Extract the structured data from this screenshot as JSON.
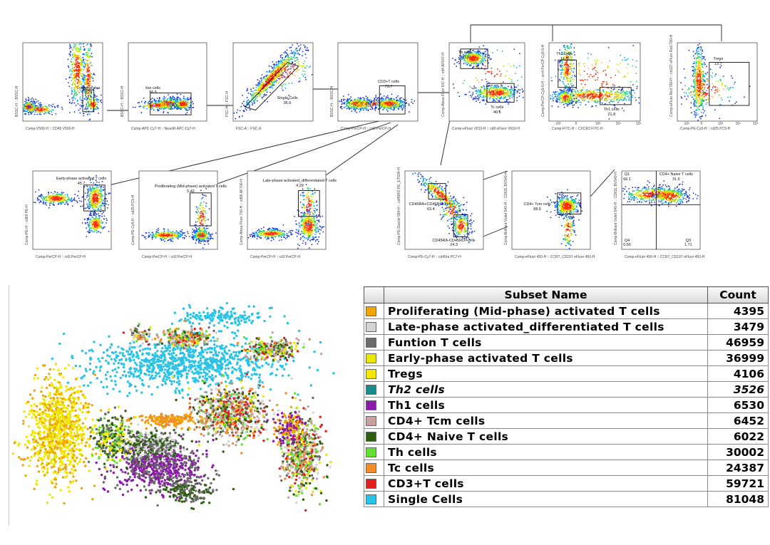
{
  "gating": {
    "panels": [
      {
        "id": "lymph",
        "x_label": "Comp-V500-H :: CD45 V500-H",
        "y_label": "BSSC-H :: BSSC-H",
        "gate_label": "Lymphocytes",
        "gate_value": "3.29"
      },
      {
        "id": "live",
        "x_label": "Comp-APC-Cy7-H :: NearIR APC-Cy7-H",
        "y_label": "BSSC-H :: BSSC-H",
        "gate_label": "live cells",
        "gate_value": "96.5"
      },
      {
        "id": "single",
        "x_label": "FSC-A :: FSC-A",
        "y_label": "FSC-H :: FSC-H",
        "gate_label": "Single Cells",
        "gate_value": "95.6"
      },
      {
        "id": "cd3",
        "x_label": "Comp-PerCP-H :: cd3 PerCP-H",
        "y_label": "BSSC-H :: BSSC-H",
        "gate_label": "CD3+T cells",
        "gate_value": "73.7"
      },
      {
        "id": "thtc",
        "x_label": "Comp-eFluor V610-H :: cd8 eFluor V610-H",
        "y_label": "Comp-Alexa Fluor 647-H :: cd4 AF647-H",
        "gate_label": "Th cells",
        "gate_value": "50.2",
        "gate_label2": "Tc cells",
        "gate_value2": "40.6"
      },
      {
        "id": "th12",
        "x_label": "Comp-FITC-H :: CXCR3 FITC-H",
        "y_label": "Comp-PerCP-Cy5-5-H :: ccr4 PerCP-Cy5-5-H",
        "gate_label": "Th2 cells",
        "gate_value": "11.8",
        "gate_label2": "Th1 cells",
        "gate_value2": "21.8",
        "ticks": [
          "-10³",
          "0",
          "10³",
          "10⁴",
          "10⁵"
        ]
      },
      {
        "id": "treg",
        "x_label": "Comp-PE-Cy5-H :: cd25 PC5-H",
        "y_label": "Comp-eFluor Red 780-H :: cd127 eFluor Red 780-H",
        "gate_label": "Tregs",
        "gate_value": "13.7",
        "ticks": [
          "-10³",
          "0",
          "10³",
          "10⁴",
          "10⁵"
        ]
      },
      {
        "id": "early",
        "x_label": "Comp-PerCP-H :: cd3 PerCP-H",
        "y_label": "Comp-PE-H :: cd69 PE-H",
        "gate_label": "Early-phase activated T cells",
        "gate_value": "45.7"
      },
      {
        "id": "prolif",
        "x_label": "Comp-PerCP-H :: cd3 PerCP-H",
        "y_label": "Comp-PE-Cy5-H :: cd25 PC5-H",
        "gate_label": "Proliferating (Mid-phase) activated T cells",
        "gate_value": "5.42"
      },
      {
        "id": "late",
        "x_label": "Comp-PerCP-H :: cd3 PerCP-H",
        "y_label": "Comp-Alexa Fluor 700-H :: cd95 AF700-H",
        "gate_label": "Late-phase activated_differentiated T cells",
        "gate_value": "4.29"
      },
      {
        "id": "cd45ra",
        "x_label": "Comp-PE-Cy7-H :: cd45ra PC7-H",
        "y_label": "Comp-PE-Dazzle 594-H :: cd45RO PE_ETS94-H",
        "gate_label": "CD45RA+CD45RO- cells",
        "gate_value": "63.4",
        "gate_label2": "CD45RA-CD45RO+cells",
        "gate_value2": "24.3"
      },
      {
        "id": "tcm",
        "x_label": "Comp-eFluor 450-H :: CCR7_CD197 eFluor 450-H",
        "y_label": "Comp-Brilliant Violet 540-H :: CD62L BV540-H",
        "gate_label": "CD4+ Tcm cells",
        "gate_value": "88.6"
      },
      {
        "id": "naive",
        "x_label": "Comp-eFluor 450-H :: CCR7_CD197 eFluor 450-H",
        "y_label": "Comp-Brilliant Violet 540-H :: CD62L BV540-H",
        "gate_label": "CD4+ Naive T cells",
        "gate_value": "31.6",
        "q1_label": "Q1",
        "q1_value": "66.1",
        "q3_label": "Q3",
        "q3_value": "1.71",
        "q4_label": "Q4",
        "q4_value": "0.56"
      }
    ]
  },
  "table": {
    "header_name": "Subset Name",
    "header_count": "Count",
    "rows": [
      {
        "name": "Proliferating (Mid-phase) activated T cells",
        "count": "4395",
        "color": "#f0a500",
        "italic": false
      },
      {
        "name": "Late-phase activated_differentiated T cells",
        "count": "3479",
        "color": "#d3d3d3",
        "italic": false
      },
      {
        "name": "Funtion T cells",
        "count": "46959",
        "color": "#6b6b6b",
        "italic": false
      },
      {
        "name": "Early-phase activated T cells",
        "count": "36999",
        "color": "#e8e800",
        "italic": false
      },
      {
        "name": "Tregs",
        "count": "4106",
        "color": "#f6e700",
        "italic": false
      },
      {
        "name": "Th2 cells",
        "count": "3526",
        "color": "#1a8a8a",
        "italic": true
      },
      {
        "name": "Th1 cells",
        "count": "6530",
        "color": "#8a1aa8",
        "italic": false
      },
      {
        "name": "CD4+ Tcm cells",
        "count": "6452",
        "color": "#caa0a0",
        "italic": false
      },
      {
        "name": "CD4+ Naive T cells",
        "count": "6022",
        "color": "#2e5e10",
        "italic": false
      },
      {
        "name": "Th cells",
        "count": "30002",
        "color": "#66dd33",
        "italic": false
      },
      {
        "name": "Tc cells",
        "count": "24387",
        "color": "#f28c28",
        "italic": false
      },
      {
        "name": "CD3+T cells",
        "count": "59721",
        "color": "#e02020",
        "italic": false
      },
      {
        "name": "Single Cells",
        "count": "81048",
        "color": "#29c3e6",
        "italic": false
      }
    ]
  },
  "chart_data": [
    {
      "type": "table",
      "columns": [
        "Subset Name",
        "Count"
      ],
      "rows": [
        [
          "Proliferating (Mid-phase) activated T cells",
          4395
        ],
        [
          "Late-phase activated_differentiated T cells",
          3479
        ],
        [
          "Funtion T cells",
          46959
        ],
        [
          "Early-phase activated T cells",
          36999
        ],
        [
          "Tregs",
          4106
        ],
        [
          "Th2 cells",
          3526
        ],
        [
          "Th1 cells",
          6530
        ],
        [
          "CD4+ Tcm cells",
          6452
        ],
        [
          "CD4+ Naive T cells",
          6022
        ],
        [
          "Th cells",
          30002
        ],
        [
          "Tc cells",
          24387
        ],
        [
          "CD3+T cells",
          59721
        ],
        [
          "Single Cells",
          81048
        ]
      ]
    },
    {
      "type": "scatter",
      "title": "",
      "xlabel": "",
      "ylabel": "",
      "grid": false,
      "legend": "none",
      "colors": {
        "Single Cells": "#29c3e6",
        "Proliferating (Mid-phase) activated T cells": "#f0a500",
        "Tregs": "#f6e700",
        "Early-phase activated T cells": "#e8e800",
        "Funtion T cells": "#6b6b6b",
        "Late-phase activated_differentiated T cells": "#d3d3d3",
        "Th1 cells": "#8a1aa8",
        "Th2 cells": "#1a8a8a",
        "CD4+ Tcm cells": "#caa0a0",
        "CD4+ Naive T cells": "#2e5e10",
        "Th cells": "#66dd33",
        "Tc cells": "#f28c28",
        "CD3+T cells": "#e02020"
      }
    }
  ]
}
